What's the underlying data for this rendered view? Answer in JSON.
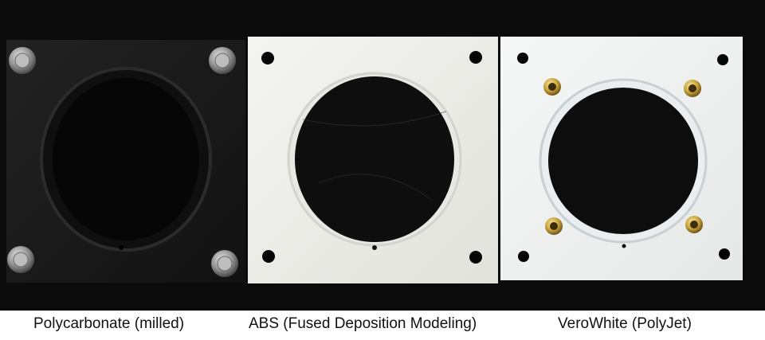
{
  "captions": [
    "Polycarbonate (milled)",
    "ABS (Fused Deposition Modeling)",
    "VeroWhite (PolyJet)"
  ],
  "colors": {
    "background": "#0b0b0b",
    "polycarbonate_plate": "#1a1a1a",
    "abs_plate": "#eeeeea",
    "verowhite_plate": "#f2f3f3",
    "insert_brass": "#c8a23a",
    "bolt_steel": "#9a9a9a"
  }
}
